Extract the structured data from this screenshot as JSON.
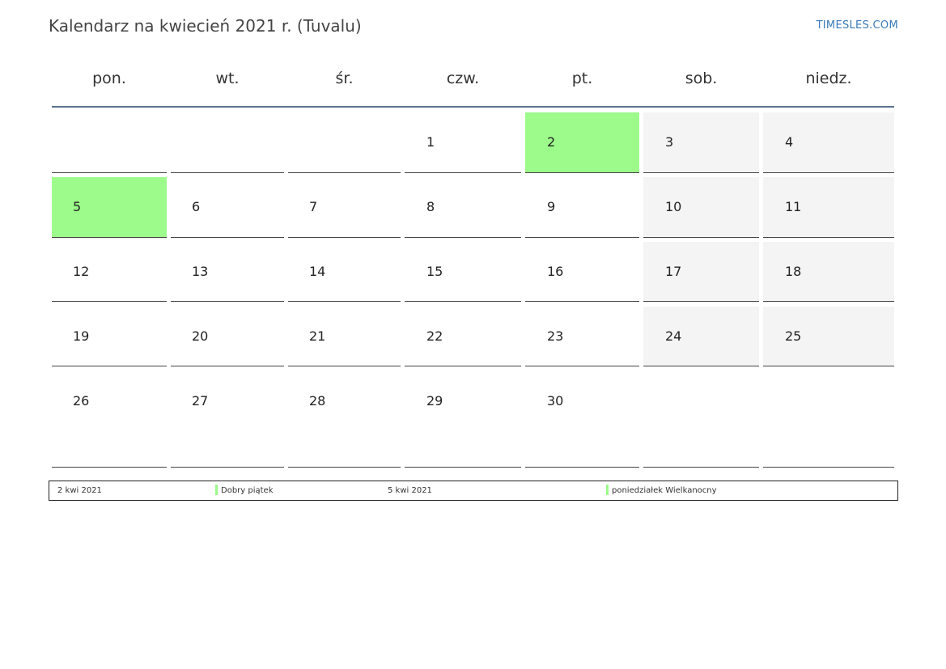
{
  "header": {
    "title": "Kalendarz na kwiecień 2021 r. (Tuvalu)",
    "brand": "TIMESLES.COM"
  },
  "weekdays": [
    "pon.",
    "wt.",
    "śr.",
    "czw.",
    "pt.",
    "sob.",
    "niedz."
  ],
  "weeks": [
    [
      "",
      "",
      "",
      "1",
      "2",
      "3",
      "4"
    ],
    [
      "5",
      "6",
      "7",
      "8",
      "9",
      "10",
      "11"
    ],
    [
      "12",
      "13",
      "14",
      "15",
      "16",
      "17",
      "18"
    ],
    [
      "19",
      "20",
      "21",
      "22",
      "23",
      "24",
      "25"
    ],
    [
      "26",
      "27",
      "28",
      "29",
      "30",
      "",
      ""
    ]
  ],
  "holiday_days": [
    "2",
    "5"
  ],
  "colors": {
    "holiday": "#9cfb8a",
    "weekend": "#f4f4f4",
    "header_rule": "#5b7290",
    "brand": "#3a7ab8"
  },
  "legend": [
    {
      "date": "2 kwi 2021",
      "name": "Dobry piątek"
    },
    {
      "date": "5 kwi 2021",
      "name": "poniedziałek Wielkanocny"
    }
  ]
}
